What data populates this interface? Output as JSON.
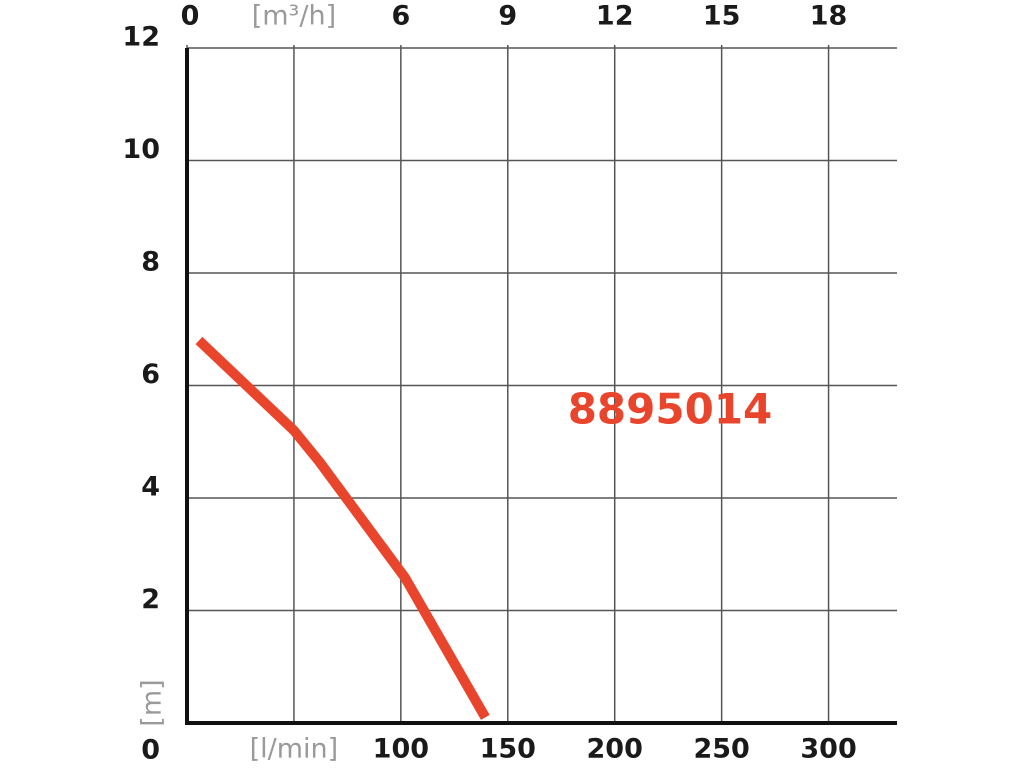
{
  "chart_data": {
    "type": "line",
    "x": [
      5.6,
      50,
      62,
      102,
      139.5
    ],
    "series": [
      {
        "name": "8895014",
        "color": "#e8452c",
        "values": [
          6.8,
          5.2,
          4.64,
          2.58,
          0.1
        ]
      }
    ],
    "xlim": [
      0,
      332
    ],
    "xticks": [
      {
        "value": 50,
        "label": "[l/min]"
      },
      100,
      150,
      200,
      250,
      300
    ],
    "x2lim": [
      0,
      19.92
    ],
    "x2ticks": [
      0,
      {
        "value": 3,
        "label": "[m³/h]"
      },
      6,
      9,
      12,
      15,
      18
    ],
    "ylim": [
      0,
      12
    ],
    "yticks": [
      0,
      2,
      4,
      6,
      8,
      10,
      12
    ],
    "ylabel": "[m]",
    "grid": true
  }
}
